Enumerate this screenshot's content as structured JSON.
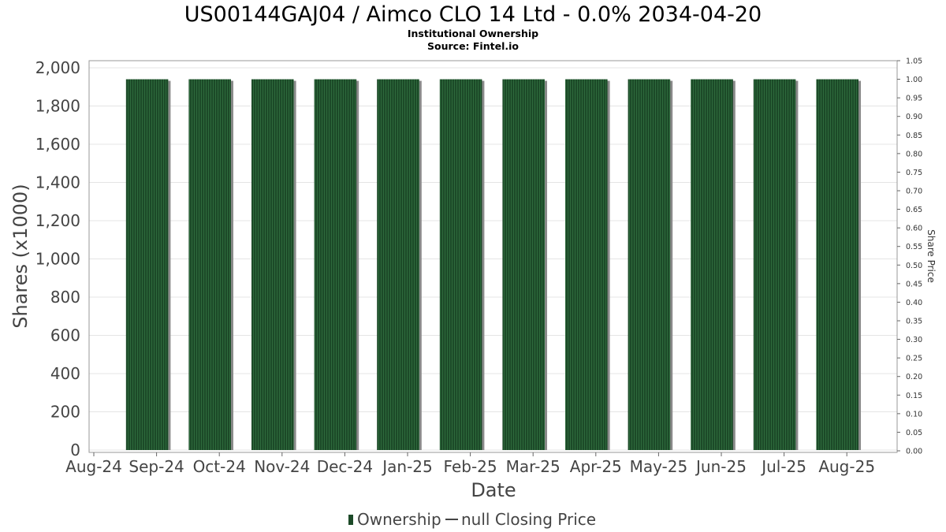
{
  "chart_data": {
    "type": "bar",
    "title": "US00144GAJ04 / Aimco CLO 14 Ltd - 0.0% 2034-04-20",
    "subtitle_lines": [
      "Institutional Ownership",
      "Source: Fintel.io"
    ],
    "xlabel": "Date",
    "ylabel": "Shares (x1000)",
    "y2label": "Share Price",
    "x_tick_labels": [
      "Aug-24",
      "Sep-24",
      "Oct-24",
      "Nov-24",
      "Dec-24",
      "Jan-25",
      "Feb-25",
      "Mar-25",
      "Apr-25",
      "May-25",
      "Jun-25",
      "Jul-25",
      "Aug-25"
    ],
    "categories": [
      "Sep-24",
      "Oct-24",
      "Nov-24",
      "Dec-24",
      "Jan-25",
      "Feb-25",
      "Mar-25",
      "Apr-25",
      "May-25",
      "Jun-25",
      "Jul-25",
      "Aug-25"
    ],
    "series": [
      {
        "name": "Ownership",
        "values": [
          1940,
          1940,
          1940,
          1940,
          1940,
          1940,
          1940,
          1940,
          1940,
          1940,
          1940,
          1940
        ]
      }
    ],
    "ylim": [
      0,
      2000
    ],
    "y_tick_labels": [
      "0",
      "200",
      "400",
      "600",
      "800",
      "1,000",
      "1,200",
      "1,400",
      "1,600",
      "1,800",
      "2,000"
    ],
    "y2lim": [
      0,
      1.05
    ],
    "y2_tick_labels": [
      "0.00",
      "0.05",
      "0.10",
      "0.15",
      "0.20",
      "0.25",
      "0.30",
      "0.35",
      "0.40",
      "0.45",
      "0.50",
      "0.55",
      "0.60",
      "0.65",
      "0.70",
      "0.75",
      "0.80",
      "0.85",
      "0.90",
      "0.95",
      "1.00",
      "1.05"
    ],
    "grid": true,
    "legend": {
      "placement": "bottom-center",
      "items": [
        {
          "label": "Ownership",
          "type": "bar"
        },
        {
          "label": "null Closing Price",
          "type": "line"
        }
      ]
    },
    "colors": {
      "bar": "#1c4a28",
      "bar_stripe": "#2e6a3c",
      "bar_shadow": "#8a8a8a",
      "grid": "#e4e4e4",
      "frame": "#999999"
    }
  }
}
